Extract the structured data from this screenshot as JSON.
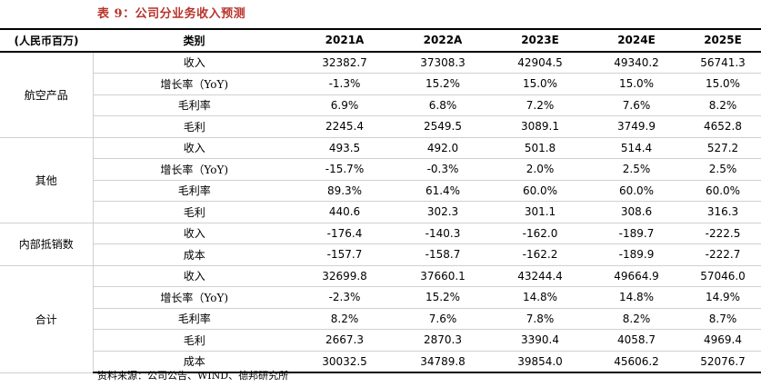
{
  "title": "表 9：公司分业务收入预测",
  "header": {
    "unit": "(人民币百万)",
    "category": "类别",
    "years": [
      "2021A",
      "2022A",
      "2023E",
      "2024E",
      "2025E"
    ]
  },
  "groups": [
    {
      "name": "航空产品",
      "rows": [
        {
          "metric": "收入",
          "values": [
            "32382.7",
            "37308.3",
            "42904.5",
            "49340.2",
            "56741.3"
          ]
        },
        {
          "metric": "增长率（YoY)",
          "values": [
            "-1.3%",
            "15.2%",
            "15.0%",
            "15.0%",
            "15.0%"
          ]
        },
        {
          "metric": "毛利率",
          "values": [
            "6.9%",
            "6.8%",
            "7.2%",
            "7.6%",
            "8.2%"
          ]
        },
        {
          "metric": "毛利",
          "values": [
            "2245.4",
            "2549.5",
            "3089.1",
            "3749.9",
            "4652.8"
          ]
        }
      ]
    },
    {
      "name": "其他",
      "rows": [
        {
          "metric": "收入",
          "values": [
            "493.5",
            "492.0",
            "501.8",
            "514.4",
            "527.2"
          ]
        },
        {
          "metric": "增长率（YoY)",
          "values": [
            "-15.7%",
            "-0.3%",
            "2.0%",
            "2.5%",
            "2.5%"
          ]
        },
        {
          "metric": "毛利率",
          "values": [
            "89.3%",
            "61.4%",
            "60.0%",
            "60.0%",
            "60.0%"
          ]
        },
        {
          "metric": "毛利",
          "values": [
            "440.6",
            "302.3",
            "301.1",
            "308.6",
            "316.3"
          ]
        }
      ]
    },
    {
      "name": "内部抵销数",
      "rows": [
        {
          "metric": "收入",
          "values": [
            "-176.4",
            "-140.3",
            "-162.0",
            "-189.7",
            "-222.5"
          ]
        },
        {
          "metric": "成本",
          "values": [
            "-157.7",
            "-158.7",
            "-162.2",
            "-189.9",
            "-222.7"
          ]
        }
      ]
    },
    {
      "name": "合计",
      "rows": [
        {
          "metric": "收入",
          "values": [
            "32699.8",
            "37660.1",
            "43244.4",
            "49664.9",
            "57046.0"
          ]
        },
        {
          "metric": "增长率（YoY)",
          "values": [
            "-2.3%",
            "15.2%",
            "14.8%",
            "14.8%",
            "14.9%"
          ]
        },
        {
          "metric": "毛利率",
          "values": [
            "8.2%",
            "7.6%",
            "7.8%",
            "8.2%",
            "8.7%"
          ]
        },
        {
          "metric": "毛利",
          "values": [
            "2667.3",
            "2870.3",
            "3390.4",
            "4058.7",
            "4969.4"
          ]
        },
        {
          "metric": "成本",
          "values": [
            "30032.5",
            "34789.8",
            "39854.0",
            "45606.2",
            "52076.7"
          ]
        }
      ]
    }
  ],
  "source": "资料来源：公司公告、WIND、德邦研究所"
}
